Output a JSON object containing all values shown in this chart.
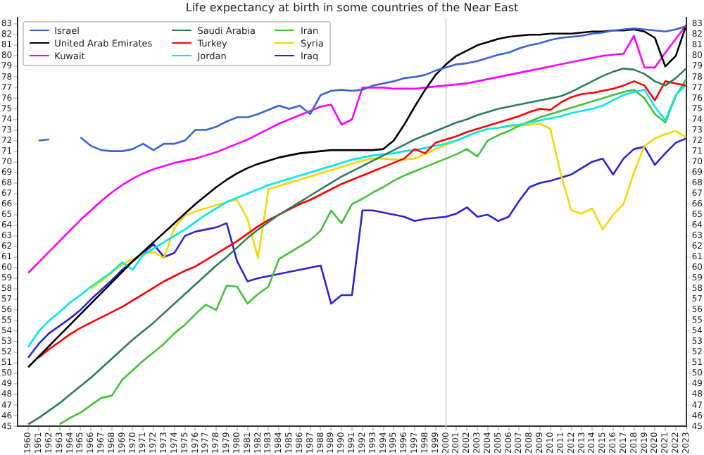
{
  "chart_data": {
    "type": "line",
    "title": "Life expectancy at birth in some countries of the Near East",
    "x": [
      1960,
      1961,
      1962,
      1963,
      1964,
      1965,
      1966,
      1967,
      1968,
      1969,
      1970,
      1971,
      1972,
      1973,
      1974,
      1975,
      1976,
      1977,
      1978,
      1979,
      1980,
      1981,
      1982,
      1983,
      1984,
      1985,
      1986,
      1987,
      1988,
      1989,
      1990,
      1991,
      1992,
      1993,
      1994,
      1995,
      1996,
      1997,
      1998,
      1999,
      2000,
      2001,
      2002,
      2003,
      2004,
      2005,
      2006,
      2007,
      2008,
      2009,
      2010,
      2011,
      2012,
      2013,
      2014,
      2015,
      2016,
      2017,
      2018,
      2019,
      2020,
      2021,
      2022,
      2023
    ],
    "xlim": [
      1959,
      2023
    ],
    "xticks": [
      1960,
      1961,
      1962,
      1963,
      1964,
      1965,
      1966,
      1967,
      1968,
      1969,
      1970,
      1971,
      1972,
      1973,
      1974,
      1975,
      1976,
      1977,
      1978,
      1979,
      1980,
      1981,
      1982,
      1983,
      1984,
      1985,
      1986,
      1987,
      1988,
      1989,
      1990,
      1991,
      1992,
      1993,
      1994,
      1995,
      1996,
      1997,
      1998,
      1999,
      2000,
      2001,
      2002,
      2003,
      2004,
      2005,
      2006,
      2007,
      2008,
      2009,
      2010,
      2011,
      2012,
      2013,
      2014,
      2015,
      2016,
      2017,
      2018,
      2019,
      2020,
      2021,
      2022,
      2023
    ],
    "ylim": [
      45,
      83.6
    ],
    "yticks": [
      45,
      46,
      47,
      48,
      49,
      50,
      51,
      52,
      53,
      54,
      55,
      56,
      57,
      58,
      59,
      60,
      61,
      62,
      63,
      64,
      65,
      66,
      67,
      68,
      69,
      70,
      71,
      72,
      73,
      74,
      75,
      76,
      77,
      78,
      79,
      80,
      81,
      82,
      83
    ],
    "y2lim": [
      45,
      83.6
    ],
    "y2ticks": [
      45,
      46,
      47,
      48,
      49,
      50,
      51,
      52,
      53,
      54,
      55,
      56,
      57,
      58,
      59,
      60,
      61,
      62,
      63,
      64,
      65,
      66,
      67,
      68,
      69,
      70,
      71,
      72,
      73,
      74,
      75,
      76,
      77,
      78,
      79,
      80,
      81,
      82,
      83
    ],
    "legend": "top left",
    "ref_lines": [
      {
        "axis": "x",
        "value": 2000,
        "color": "#e0e0e0"
      }
    ],
    "series": [
      {
        "name": "Israel",
        "color": "#3a62d8",
        "values": [
          null,
          72.0,
          72.1,
          null,
          null,
          72.3,
          71.5,
          71.1,
          71.0,
          71.0,
          71.2,
          71.7,
          71.1,
          71.7,
          71.7,
          72.0,
          73.0,
          73.0,
          73.3,
          73.8,
          74.2,
          74.2,
          74.5,
          74.9,
          75.3,
          75.0,
          75.3,
          74.5,
          76.3,
          76.7,
          76.8,
          76.7,
          76.8,
          77.2,
          77.4,
          77.6,
          77.9,
          78.0,
          78.2,
          78.6,
          78.9,
          79.2,
          79.3,
          79.5,
          79.8,
          80.1,
          80.3,
          80.7,
          81.0,
          81.2,
          81.5,
          81.7,
          81.8,
          81.9,
          82.1,
          82.2,
          82.4,
          82.5,
          82.6,
          82.5,
          82.4,
          82.3,
          82.5,
          82.8
        ]
      },
      {
        "name": "United Arab Emirates",
        "color": "#000000",
        "values": [
          50.6,
          51.6,
          52.6,
          53.6,
          54.6,
          55.6,
          56.6,
          57.6,
          58.6,
          59.6,
          60.6,
          61.5,
          62.4,
          63.3,
          64.2,
          65.1,
          66.0,
          66.8,
          67.6,
          68.3,
          68.9,
          69.4,
          69.8,
          70.1,
          70.4,
          70.6,
          70.8,
          70.9,
          71.0,
          71.1,
          71.1,
          71.1,
          71.1,
          71.1,
          71.2,
          72.0,
          73.5,
          75.2,
          76.8,
          78.2,
          79.2,
          80.0,
          80.5,
          81.0,
          81.3,
          81.6,
          81.8,
          81.9,
          82.0,
          82.0,
          82.1,
          82.1,
          82.1,
          82.2,
          82.3,
          82.3,
          82.4,
          82.4,
          82.5,
          82.3,
          81.7,
          79.0,
          80.0,
          82.9
        ]
      },
      {
        "name": "Kuwait",
        "color": "#ff00ff",
        "values": [
          59.5,
          60.5,
          61.5,
          62.5,
          63.5,
          64.5,
          65.4,
          66.3,
          67.1,
          67.8,
          68.4,
          68.9,
          69.3,
          69.6,
          69.9,
          70.1,
          70.3,
          70.6,
          70.9,
          71.3,
          71.7,
          72.1,
          72.6,
          73.1,
          73.6,
          74.0,
          74.4,
          74.8,
          75.2,
          75.4,
          73.5,
          74.0,
          77.0,
          77.0,
          77.0,
          76.9,
          76.9,
          76.9,
          77.0,
          77.1,
          77.2,
          77.3,
          77.4,
          77.6,
          77.8,
          78.0,
          78.2,
          78.4,
          78.6,
          78.8,
          79.0,
          79.2,
          79.4,
          79.6,
          79.8,
          80.0,
          80.1,
          80.2,
          81.9,
          78.9,
          78.9,
          80.3,
          81.6,
          82.9
        ]
      },
      {
        "name": "Saudi Arabia",
        "color": "#2e7d57",
        "values": [
          45.2,
          45.8,
          46.5,
          47.2,
          48.0,
          48.8,
          49.6,
          50.5,
          51.4,
          52.3,
          53.2,
          54.0,
          54.8,
          55.7,
          56.6,
          57.5,
          58.4,
          59.3,
          60.2,
          61.0,
          61.9,
          62.8,
          63.6,
          64.3,
          65.0,
          65.6,
          66.2,
          66.8,
          67.4,
          68.0,
          68.6,
          69.1,
          69.6,
          70.1,
          70.6,
          71.1,
          71.6,
          72.1,
          72.5,
          72.9,
          73.3,
          73.7,
          74.0,
          74.4,
          74.7,
          75.0,
          75.2,
          75.4,
          75.6,
          75.8,
          76.0,
          76.2,
          76.6,
          77.1,
          77.6,
          78.1,
          78.5,
          78.8,
          78.7,
          78.3,
          77.6,
          77.2,
          77.9,
          78.8
        ]
      },
      {
        "name": "Turkey",
        "color": "#ff0000",
        "values": [
          null,
          51.5,
          52.3,
          53.0,
          53.7,
          54.3,
          54.8,
          55.3,
          55.8,
          56.3,
          56.9,
          57.5,
          58.1,
          58.7,
          59.2,
          59.7,
          60.1,
          60.7,
          61.3,
          61.9,
          62.5,
          63.2,
          63.9,
          64.5,
          65.0,
          65.5,
          66.0,
          66.4,
          66.9,
          67.4,
          67.9,
          68.3,
          68.7,
          69.1,
          69.5,
          69.9,
          70.3,
          71.2,
          70.8,
          71.8,
          72.1,
          72.4,
          72.8,
          73.1,
          73.4,
          73.7,
          74.0,
          74.3,
          74.7,
          75.0,
          74.9,
          75.6,
          76.1,
          76.4,
          76.5,
          76.7,
          76.9,
          77.2,
          77.6,
          77.2,
          75.8,
          77.6,
          77.4,
          77.2
        ]
      },
      {
        "name": "Jordan",
        "color": "#00e8f0",
        "values": [
          52.5,
          54.0,
          55.0,
          55.8,
          56.7,
          57.4,
          58.2,
          58.9,
          59.6,
          60.5,
          59.8,
          61.2,
          61.8,
          62.4,
          63.0,
          63.6,
          64.3,
          65.0,
          65.6,
          66.2,
          66.6,
          67.0,
          67.4,
          67.8,
          68.1,
          68.4,
          68.7,
          69.0,
          69.3,
          69.6,
          69.9,
          70.2,
          70.4,
          70.6,
          70.7,
          70.8,
          71.0,
          71.1,
          71.3,
          71.5,
          71.7,
          72.0,
          72.4,
          72.8,
          73.1,
          73.2,
          73.4,
          73.5,
          73.7,
          73.9,
          74.1,
          74.3,
          74.6,
          74.8,
          75.0,
          75.3,
          75.8,
          76.3,
          76.6,
          76.8,
          75.2,
          73.9,
          76.3,
          77.3
        ]
      },
      {
        "name": "Iran",
        "color": "#44c03a",
        "values": [
          null,
          null,
          null,
          45.2,
          45.8,
          46.3,
          47.0,
          47.7,
          47.9,
          49.4,
          50.3,
          51.2,
          52.0,
          52.8,
          53.8,
          54.6,
          55.6,
          56.5,
          56.0,
          58.3,
          58.2,
          56.6,
          57.5,
          58.2,
          60.8,
          61.4,
          62.0,
          62.6,
          63.5,
          65.4,
          64.2,
          66.0,
          66.5,
          67.1,
          67.6,
          68.2,
          68.7,
          69.1,
          69.5,
          69.9,
          70.3,
          70.7,
          71.2,
          70.5,
          72.0,
          72.5,
          72.9,
          73.4,
          73.8,
          74.2,
          74.5,
          74.8,
          75.1,
          75.4,
          75.7,
          76.0,
          76.3,
          76.6,
          76.8,
          76.0,
          74.5,
          73.7,
          76.2,
          77.8
        ]
      },
      {
        "name": "Syria",
        "color": "#f5d800",
        "values": [
          null,
          null,
          null,
          null,
          null,
          null,
          58.0,
          58.7,
          59.5,
          60.3,
          60.8,
          61.3,
          61.5,
          60.9,
          63.8,
          64.9,
          65.3,
          65.6,
          65.9,
          66.2,
          66.4,
          64.6,
          60.9,
          67.4,
          67.7,
          68.0,
          68.3,
          68.6,
          68.9,
          69.2,
          69.5,
          69.8,
          70.1,
          70.3,
          70.3,
          70.2,
          70.2,
          70.3,
          70.7,
          71.2,
          71.6,
          72.0,
          72.4,
          72.8,
          73.1,
          73.2,
          73.3,
          73.4,
          73.5,
          73.6,
          73.1,
          68.8,
          65.4,
          65.1,
          65.6,
          63.6,
          65.0,
          66.0,
          69.0,
          71.5,
          72.2,
          72.6,
          72.9,
          72.3
        ]
      },
      {
        "name": "Iraq",
        "color": "#2a22d4",
        "values": [
          51.5,
          52.8,
          53.8,
          54.5,
          55.2,
          56.0,
          57.0,
          57.9,
          58.8,
          59.8,
          60.6,
          61.4,
          62.2,
          61.0,
          61.4,
          63.0,
          63.4,
          63.6,
          63.8,
          64.2,
          60.6,
          58.7,
          59.0,
          59.2,
          59.4,
          59.6,
          59.8,
          60.0,
          60.2,
          56.6,
          57.4,
          57.4,
          65.4,
          65.4,
          65.2,
          65.0,
          64.8,
          64.4,
          64.6,
          64.7,
          64.8,
          65.1,
          65.7,
          64.8,
          65.0,
          64.4,
          64.8,
          66.3,
          67.6,
          68.0,
          68.2,
          68.5,
          68.8,
          69.4,
          70.0,
          70.3,
          68.8,
          70.3,
          71.2,
          71.4,
          69.7,
          70.8,
          71.8,
          72.2
        ]
      }
    ]
  }
}
